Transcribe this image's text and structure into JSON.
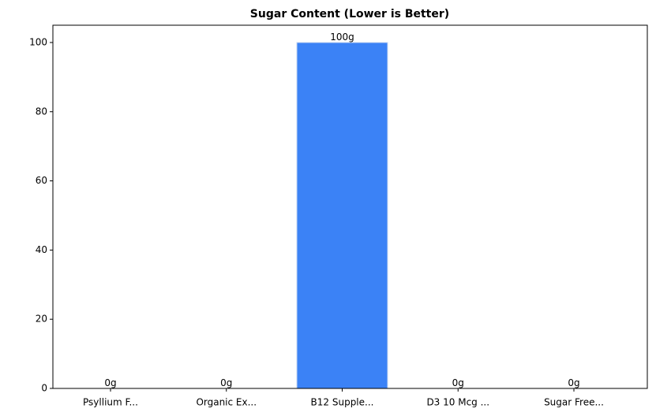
{
  "chart_data": {
    "type": "bar",
    "title": "Sugar Content (Lower is Better)",
    "categories": [
      "Psyllium F...",
      "Organic Ex...",
      "B12 Supple...",
      "D3 10 Mcg ...",
      "Sugar Free..."
    ],
    "values": [
      0,
      0,
      100,
      0,
      0
    ],
    "value_labels": [
      "0g",
      "0g",
      "100g",
      "0g",
      "0g"
    ],
    "color": "#3b82f6",
    "ylim": [
      0,
      105
    ],
    "yticks": [
      0,
      20,
      40,
      60,
      80,
      100
    ],
    "grid": false
  }
}
